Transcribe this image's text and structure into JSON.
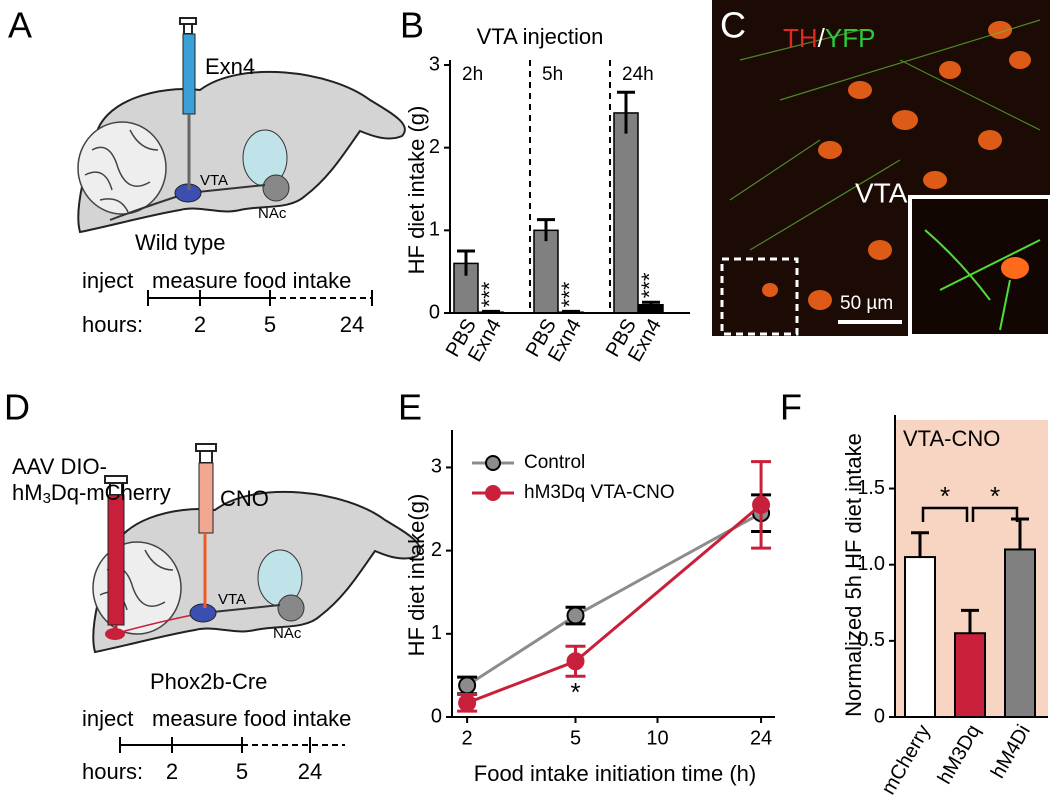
{
  "panels": {
    "A": {
      "letter": "A",
      "syringe_label": "Exn4",
      "vta": "VTA",
      "nac": "NAc",
      "mouse": "Wild type",
      "timeline": {
        "inject": "inject",
        "measure": "measure food intake",
        "hours": "hours:",
        "ticks": [
          "2",
          "5",
          "24"
        ]
      }
    },
    "C": {
      "letter": "C",
      "stain_1": "TH",
      "separator": "/",
      "stain_2": "YFP",
      "region": "VTA",
      "scale_bar": "50 µm"
    },
    "D": {
      "letter": "D",
      "virus_line1": "AAV DIO-",
      "virus_line2": [
        "hM",
        "3",
        "Dq-mCherry"
      ],
      "drug": "CNO",
      "vta": "VTA",
      "nac": "NAc",
      "mouse": "Phox2b-Cre",
      "timeline": {
        "inject": "inject",
        "measure": "measure food intake",
        "hours": "hours:",
        "ticks": [
          "2",
          "5",
          "24"
        ]
      }
    }
  },
  "chart_data": [
    {
      "type": "bar",
      "panel": "B",
      "title": "VTA injection",
      "ylabel": "HF diet intake (g)",
      "ylim": [
        0,
        3
      ],
      "yticks": [
        0,
        1,
        2,
        3
      ],
      "groups": [
        "2h",
        "5h",
        "24h"
      ],
      "series": [
        {
          "name": "PBS",
          "color": "#808080",
          "values": [
            0.6,
            1.0,
            2.42
          ],
          "errors": [
            0.15,
            0.13,
            0.25
          ]
        },
        {
          "name": "Exn4",
          "color": "#000000",
          "values": [
            0.01,
            0.01,
            0.1
          ],
          "errors": [
            0.01,
            0.01,
            0.03
          ]
        }
      ],
      "annotations": [
        "***",
        "***",
        "***"
      ]
    },
    {
      "type": "line",
      "panel": "E",
      "xlabel": "Food intake initiation time (h)",
      "ylabel": "HF diet intake(g)",
      "xscale": "log",
      "xlim": [
        1.76,
        27
      ],
      "xticks": [
        2,
        5,
        10,
        24
      ],
      "ylim": [
        0,
        3.45
      ],
      "yticks": [
        0,
        1,
        2,
        3
      ],
      "legend": "upper left",
      "x": [
        2,
        5,
        24
      ],
      "series": [
        {
          "name": "Control",
          "color": "#8c8c8c",
          "values": [
            0.38,
            1.22,
            2.45
          ],
          "errors": [
            0.1,
            0.1,
            0.22
          ]
        },
        {
          "name": "hM3Dq VTA-CNO",
          "color": "#c8203a",
          "values": [
            0.17,
            0.67,
            2.55
          ],
          "errors": [
            0.1,
            0.18,
            0.52
          ]
        }
      ],
      "annotation": "*"
    },
    {
      "type": "bar",
      "panel": "F",
      "ylabel": "Normalized 5h HF diet intake",
      "box_label": "VTA-CNO",
      "background": "#f8d5c3",
      "categories": [
        "mCherry",
        "hM3Dq",
        "hM4Di"
      ],
      "values": [
        1.05,
        0.55,
        1.1
      ],
      "errors": [
        0.16,
        0.15,
        0.2
      ],
      "colors": [
        "#ffffff",
        "#c8203a",
        "#808080"
      ],
      "ylim": [
        0,
        1.95
      ],
      "yticks": [
        0,
        0.5,
        {
          "value": 1,
          "label": "1.0"
        },
        1.5
      ],
      "significance": [
        "*",
        "*"
      ]
    }
  ]
}
